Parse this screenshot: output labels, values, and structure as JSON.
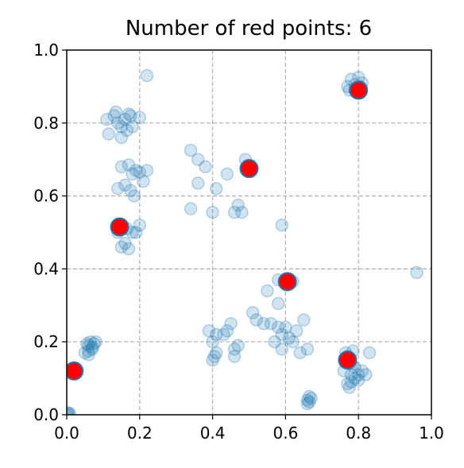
{
  "chart_data": {
    "type": "scatter",
    "title": "Number of red points: 6",
    "xlabel": "",
    "ylabel": "",
    "xlim": [
      0,
      1
    ],
    "ylim": [
      0,
      1
    ],
    "x_ticks": [
      "0.0",
      "0.2",
      "0.4",
      "0.6",
      "0.8",
      "1.0"
    ],
    "y_ticks": [
      "0.0",
      "0.2",
      "0.4",
      "0.6",
      "0.8",
      "1.0"
    ],
    "grid": true,
    "colors": {
      "blue": "#1f77b4",
      "red": "#ff0000",
      "grid": "#b0b0b0"
    },
    "series": [
      {
        "marker": "blue-circle-translucent",
        "points": [
          [
            0.0,
            0.0
          ],
          [
            0.005,
            0.002
          ],
          [
            0.008,
            0.004
          ],
          [
            0.002,
            0.006
          ],
          [
            0.05,
            0.17
          ],
          [
            0.06,
            0.19
          ],
          [
            0.07,
            0.18
          ],
          [
            0.06,
            0.175
          ],
          [
            0.055,
            0.195
          ],
          [
            0.065,
            0.2
          ],
          [
            0.07,
            0.185
          ],
          [
            0.075,
            0.195
          ],
          [
            0.06,
            0.165
          ],
          [
            0.08,
            0.2
          ],
          [
            0.11,
            0.81
          ],
          [
            0.115,
            0.77
          ],
          [
            0.13,
            0.82
          ],
          [
            0.14,
            0.8
          ],
          [
            0.15,
            0.79
          ],
          [
            0.15,
            0.76
          ],
          [
            0.16,
            0.81
          ],
          [
            0.17,
            0.825
          ],
          [
            0.175,
            0.82
          ],
          [
            0.18,
            0.79
          ],
          [
            0.2,
            0.815
          ],
          [
            0.135,
            0.83
          ],
          [
            0.165,
            0.78
          ],
          [
            0.14,
            0.62
          ],
          [
            0.16,
            0.63
          ],
          [
            0.15,
            0.68
          ],
          [
            0.17,
            0.685
          ],
          [
            0.18,
            0.66
          ],
          [
            0.185,
            0.6
          ],
          [
            0.19,
            0.67
          ],
          [
            0.2,
            0.665
          ],
          [
            0.21,
            0.64
          ],
          [
            0.22,
            0.67
          ],
          [
            0.175,
            0.615
          ],
          [
            0.14,
            0.5
          ],
          [
            0.15,
            0.46
          ],
          [
            0.16,
            0.47
          ],
          [
            0.17,
            0.455
          ],
          [
            0.18,
            0.5
          ],
          [
            0.19,
            0.5
          ],
          [
            0.2,
            0.52
          ],
          [
            0.165,
            0.51
          ],
          [
            0.22,
            0.93
          ],
          [
            0.34,
            0.725
          ],
          [
            0.36,
            0.7
          ],
          [
            0.38,
            0.68
          ],
          [
            0.36,
            0.635
          ],
          [
            0.34,
            0.565
          ],
          [
            0.4,
            0.555
          ],
          [
            0.41,
            0.62
          ],
          [
            0.44,
            0.66
          ],
          [
            0.47,
            0.575
          ],
          [
            0.46,
            0.555
          ],
          [
            0.48,
            0.555
          ],
          [
            0.49,
            0.7
          ],
          [
            0.39,
            0.23
          ],
          [
            0.4,
            0.2
          ],
          [
            0.41,
            0.22
          ],
          [
            0.4,
            0.15
          ],
          [
            0.41,
            0.17
          ],
          [
            0.43,
            0.22
          ],
          [
            0.44,
            0.23
          ],
          [
            0.45,
            0.25
          ],
          [
            0.46,
            0.18
          ],
          [
            0.47,
            0.19
          ],
          [
            0.46,
            0.16
          ],
          [
            0.405,
            0.16
          ],
          [
            0.51,
            0.28
          ],
          [
            0.52,
            0.26
          ],
          [
            0.54,
            0.25
          ],
          [
            0.56,
            0.25
          ],
          [
            0.57,
            0.2
          ],
          [
            0.58,
            0.24
          ],
          [
            0.59,
            0.22
          ],
          [
            0.6,
            0.24
          ],
          [
            0.61,
            0.21
          ],
          [
            0.62,
            0.2
          ],
          [
            0.63,
            0.23
          ],
          [
            0.64,
            0.17
          ],
          [
            0.65,
            0.26
          ],
          [
            0.66,
            0.18
          ],
          [
            0.59,
            0.18
          ],
          [
            0.55,
            0.34
          ],
          [
            0.58,
            0.305
          ],
          [
            0.58,
            0.37
          ],
          [
            0.62,
            0.365
          ],
          [
            0.59,
            0.52
          ],
          [
            0.66,
            0.04
          ],
          [
            0.665,
            0.035
          ],
          [
            0.67,
            0.045
          ],
          [
            0.665,
            0.05
          ],
          [
            0.66,
            0.03
          ],
          [
            0.77,
            0.085
          ],
          [
            0.78,
            0.09
          ],
          [
            0.76,
            0.12
          ],
          [
            0.78,
            0.11
          ],
          [
            0.79,
            0.13
          ],
          [
            0.8,
            0.11
          ],
          [
            0.81,
            0.12
          ],
          [
            0.82,
            0.11
          ],
          [
            0.83,
            0.17
          ],
          [
            0.77,
            0.16
          ],
          [
            0.78,
            0.14
          ],
          [
            0.79,
            0.1
          ],
          [
            0.8,
            0.095
          ],
          [
            0.765,
            0.17
          ],
          [
            0.785,
            0.175
          ],
          [
            0.775,
            0.075
          ],
          [
            0.77,
            0.9
          ],
          [
            0.78,
            0.92
          ],
          [
            0.79,
            0.89
          ],
          [
            0.8,
            0.925
          ],
          [
            0.805,
            0.9
          ],
          [
            0.81,
            0.91
          ],
          [
            0.79,
            0.905
          ],
          [
            0.775,
            0.89
          ],
          [
            0.96,
            0.39
          ]
        ]
      },
      {
        "marker": "red-circle",
        "points": [
          [
            0.02,
            0.12
          ],
          [
            0.145,
            0.515
          ],
          [
            0.5,
            0.675
          ],
          [
            0.605,
            0.365
          ],
          [
            0.77,
            0.15
          ],
          [
            0.8,
            0.89
          ]
        ]
      }
    ]
  }
}
